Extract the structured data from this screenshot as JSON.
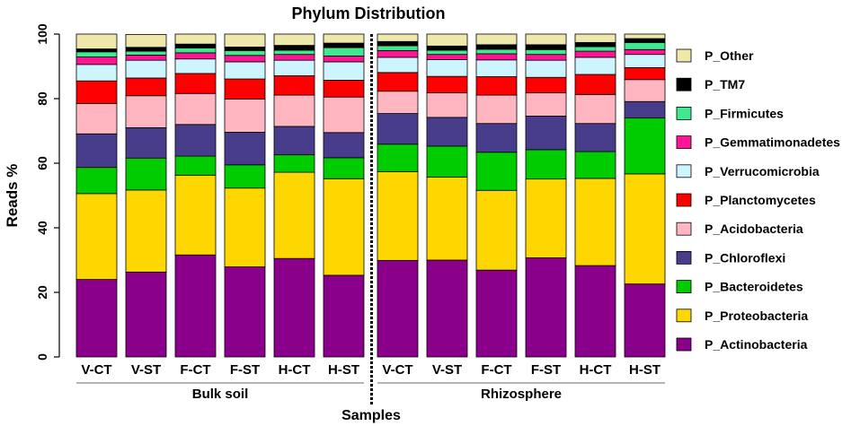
{
  "chart_data": {
    "type": "stacked-bar",
    "title": "Phylum Distribution",
    "xlabel": "Samples",
    "ylabel": "Reads %",
    "ylim": [
      0,
      100
    ],
    "yticks": [
      0,
      20,
      40,
      60,
      80,
      100
    ],
    "groups": [
      {
        "label": "Bulk soil",
        "categories": [
          "V-CT",
          "V-ST",
          "F-CT",
          "F-ST",
          "H-CT",
          "H-ST"
        ]
      },
      {
        "label": "Rhizosphere",
        "categories": [
          "V-CT",
          "V-ST",
          "F-CT",
          "F-ST",
          "H-CT",
          "H-ST"
        ]
      }
    ],
    "categories": [
      "V-CT",
      "V-ST",
      "F-CT",
      "F-ST",
      "H-CT",
      "H-ST",
      "V-CT",
      "V-ST",
      "F-CT",
      "F-ST",
      "H-CT",
      "H-ST"
    ],
    "series": [
      {
        "name": "P_Actinobacteria",
        "color": "#8B008B",
        "values": [
          24,
          26.3,
          31.6,
          27.9,
          30.5,
          25.3,
          29.9,
          30,
          26.9,
          30.7,
          28.3,
          22.6
        ]
      },
      {
        "name": "P_Proteobacteria",
        "color": "#FFD700",
        "values": [
          26.6,
          25.4,
          24.7,
          24.4,
          26.7,
          29.9,
          27.5,
          25.7,
          24.7,
          24.4,
          27,
          34.1
        ]
      },
      {
        "name": "P_Bacteroidetes",
        "color": "#00CC00",
        "values": [
          8.1,
          9.9,
          5.9,
          7.2,
          5.4,
          6.5,
          8.5,
          9.6,
          11.8,
          9.1,
          8.3,
          17.3
        ]
      },
      {
        "name": "P_Chloroflexi",
        "color": "#483D8B",
        "values": [
          10.4,
          9.4,
          9.8,
          10.1,
          8.8,
          7.8,
          9.5,
          8.9,
          8.9,
          10.4,
          8.7,
          5.1
        ]
      },
      {
        "name": "P_Acidobacteria",
        "color": "#FFB6C1",
        "values": [
          9.4,
          9.9,
          9.6,
          10.3,
          9.7,
          11,
          6.9,
          7.6,
          8.8,
          7.2,
          9,
          6.8
        ]
      },
      {
        "name": "P_Planctomycetes",
        "color": "#FF0000",
        "values": [
          7,
          5.5,
          6.2,
          6.2,
          6,
          5.2,
          5.8,
          5.1,
          5.7,
          4.8,
          6.2,
          3.7
        ]
      },
      {
        "name": "P_Verrucomicrobia",
        "color": "#CCF5FF",
        "values": [
          5.1,
          5.5,
          4.5,
          5.3,
          4.8,
          5.7,
          4.7,
          5.2,
          5.2,
          5.3,
          5.3,
          4.1
        ]
      },
      {
        "name": "P_Gemmatimonadetes",
        "color": "#FF1493",
        "values": [
          2.3,
          1.6,
          1.9,
          2,
          1.8,
          1.8,
          2.1,
          1.6,
          1.9,
          1.8,
          1.9,
          1.5
        ]
      },
      {
        "name": "P_Firmicutes",
        "color": "#40E890",
        "values": [
          1.6,
          1.2,
          1.5,
          1.5,
          1.3,
          2.6,
          1.5,
          1.3,
          1.4,
          1.5,
          1.4,
          2.2
        ]
      },
      {
        "name": "P_TM7",
        "color": "#000000",
        "values": [
          0.9,
          1.2,
          1.2,
          1.1,
          1.5,
          1.4,
          1.3,
          1.3,
          1.4,
          1.5,
          1.3,
          1.2
        ]
      },
      {
        "name": "P_Other",
        "color": "#EEE8AA",
        "values": [
          4.6,
          4,
          3.1,
          4,
          3.5,
          2.8,
          2.3,
          3.7,
          3.3,
          3.3,
          2.6,
          1.4
        ]
      }
    ]
  }
}
